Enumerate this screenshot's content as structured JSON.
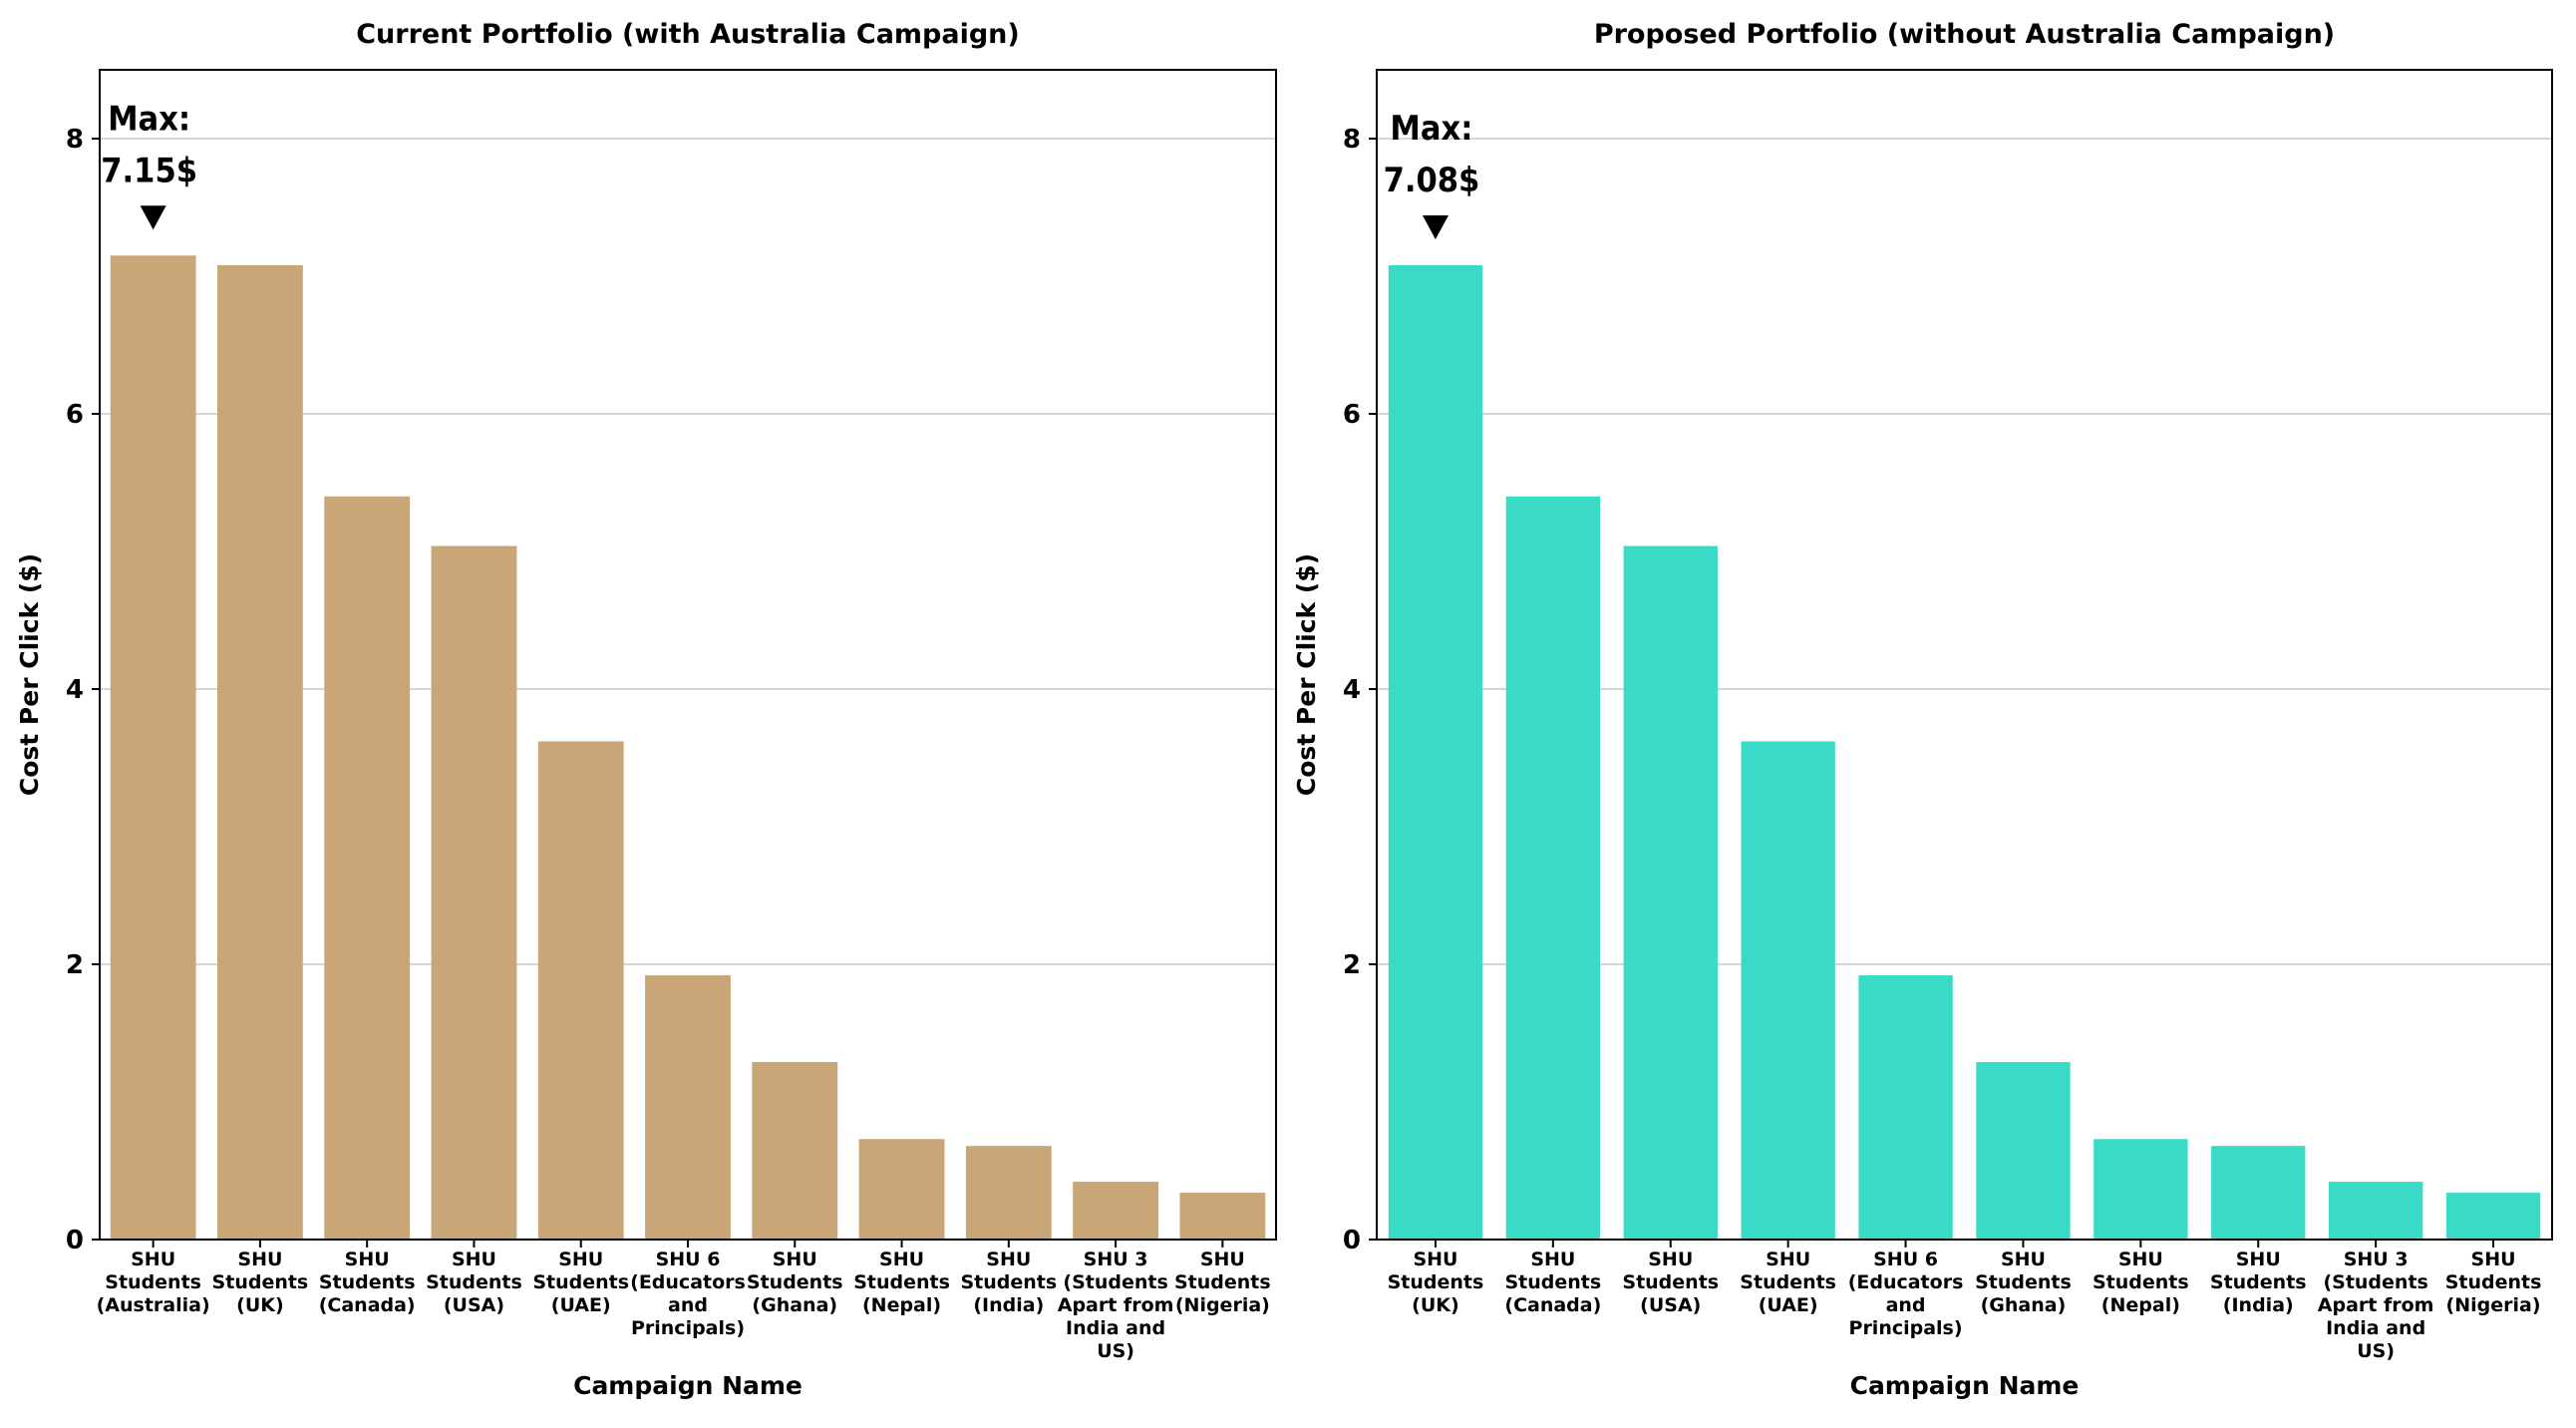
{
  "chart_data": [
    {
      "type": "bar",
      "title": "Current Portfolio (with Australia Campaign)",
      "xlabel": "Campaign Name",
      "ylabel": "Cost Per Click ($)",
      "ylim": [
        0,
        8.5
      ],
      "yticks": [
        0,
        2,
        4,
        6,
        8
      ],
      "grid": "y",
      "color": "#C8A677",
      "categories": [
        "SHU Students (Australia)",
        "SHU Students (UK)",
        "SHU Students (Canada)",
        "SHU Students (USA)",
        "SHU Students (UAE)",
        "SHU 6 (Educators and Principals)",
        "SHU Students (Ghana)",
        "SHU Students (Nepal)",
        "SHU Students (India)",
        "SHU 3 (Students Apart from India and US)",
        "SHU Students (Nigeria)"
      ],
      "category_lines": [
        [
          "SHU",
          "Students",
          "(Australia)"
        ],
        [
          "SHU",
          "Students",
          "(UK)"
        ],
        [
          "SHU",
          "Students",
          "(Canada)"
        ],
        [
          "SHU",
          "Students",
          "(USA)"
        ],
        [
          "SHU",
          "Students",
          "(UAE)"
        ],
        [
          "SHU 6",
          "(Educators",
          "and",
          "Principals)"
        ],
        [
          "SHU",
          "Students",
          "(Ghana)"
        ],
        [
          "SHU",
          "Students",
          "(Nepal)"
        ],
        [
          "SHU",
          "Students",
          "(India)"
        ],
        [
          "SHU 3",
          "(Students",
          "Apart from",
          "India and",
          "US)"
        ],
        [
          "SHU",
          "Students",
          "(Nigeria)"
        ]
      ],
      "values": [
        7.15,
        7.08,
        5.4,
        5.04,
        3.62,
        1.92,
        1.29,
        0.73,
        0.68,
        0.42,
        0.34
      ],
      "annotation": {
        "line1": "Max:",
        "line2": "7.15$",
        "category_index": 0,
        "marker": "▼"
      }
    },
    {
      "type": "bar",
      "title": "Proposed Portfolio (without Australia Campaign)",
      "xlabel": "Campaign Name",
      "ylabel": "Cost Per Click ($)",
      "ylim": [
        0,
        8.5
      ],
      "yticks": [
        0,
        2,
        4,
        6,
        8
      ],
      "grid": "y",
      "color": "#3ADBC6",
      "categories": [
        "SHU Students (UK)",
        "SHU Students (Canada)",
        "SHU Students (USA)",
        "SHU Students (UAE)",
        "SHU 6 (Educators and Principals)",
        "SHU Students (Ghana)",
        "SHU Students (Nepal)",
        "SHU Students (India)",
        "SHU 3 (Students Apart from India and US)",
        "SHU Students (Nigeria)"
      ],
      "category_lines": [
        [
          "SHU",
          "Students",
          "(UK)"
        ],
        [
          "SHU",
          "Students",
          "(Canada)"
        ],
        [
          "SHU",
          "Students",
          "(USA)"
        ],
        [
          "SHU",
          "Students",
          "(UAE)"
        ],
        [
          "SHU 6",
          "(Educators",
          "and",
          "Principals)"
        ],
        [
          "SHU",
          "Students",
          "(Ghana)"
        ],
        [
          "SHU",
          "Students",
          "(Nepal)"
        ],
        [
          "SHU",
          "Students",
          "(India)"
        ],
        [
          "SHU 3",
          "(Students",
          "Apart from",
          "India and",
          "US)"
        ],
        [
          "SHU",
          "Students",
          "(Nigeria)"
        ]
      ],
      "values": [
        7.08,
        5.4,
        5.04,
        3.62,
        1.92,
        1.29,
        0.73,
        0.68,
        0.42,
        0.34
      ],
      "annotation": {
        "line1": "Max:",
        "line2": "7.08$",
        "category_index": 0,
        "marker": "▼"
      }
    }
  ]
}
